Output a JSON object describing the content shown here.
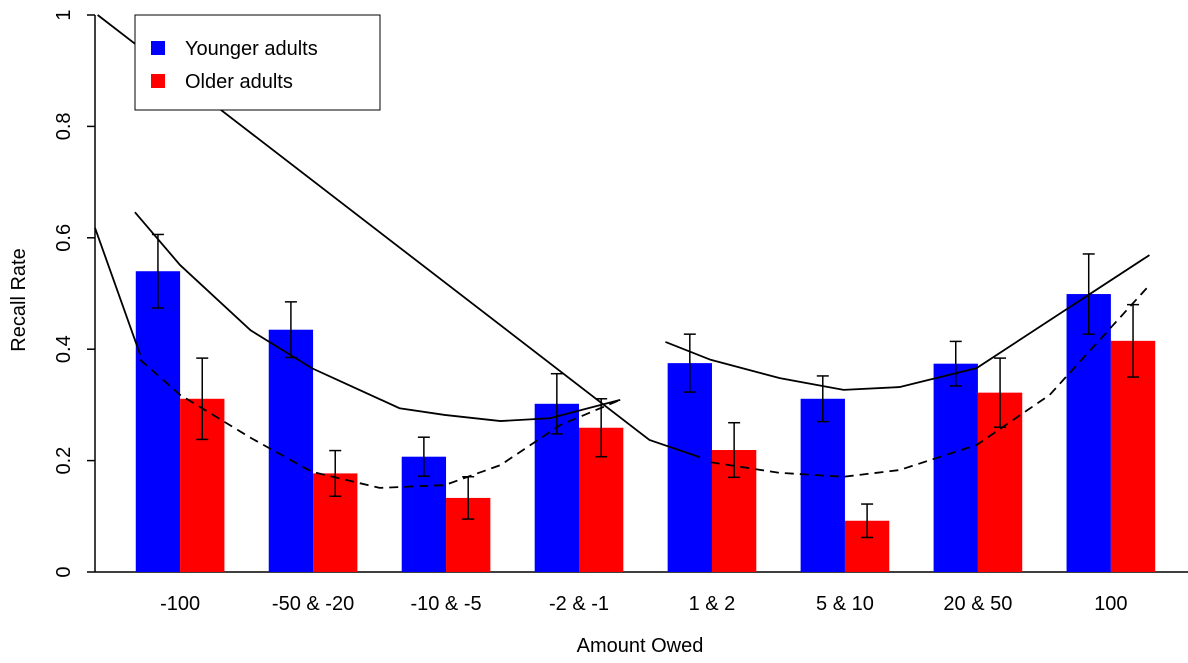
{
  "chart_data": {
    "type": "bar",
    "x_label": "Amount Owed",
    "y_label": "Recall Rate",
    "categories": [
      "-100",
      "-50 & -20",
      "-10 & -5",
      "-2 & -1",
      "1 & 2",
      "5 & 10",
      "20 & 50",
      "100"
    ],
    "series": [
      {
        "name": "Younger adults",
        "color": "#0000ff",
        "values": [
          0.54,
          0.435,
          0.207,
          0.302,
          0.375,
          0.311,
          0.374,
          0.499
        ],
        "errors": [
          0.066,
          0.05,
          0.035,
          0.054,
          0.052,
          0.041,
          0.04,
          0.072
        ]
      },
      {
        "name": "Older adults",
        "color": "#ff0000",
        "values": [
          0.311,
          0.177,
          0.133,
          0.259,
          0.219,
          0.092,
          0.322,
          0.415
        ],
        "errors": [
          0.073,
          0.041,
          0.038,
          0.052,
          0.049,
          0.03,
          0.062,
          0.065
        ]
      }
    ],
    "lines": [
      {
        "dashed": false,
        "x": [
          -0.34,
          0,
          0.53,
          0.99,
          1.65,
          1.99,
          2.41,
          2.78,
          3.31
        ],
        "values": [
          0.646,
          0.551,
          0.434,
          0.366,
          0.294,
          0.282,
          0.271,
          0.276,
          0.309
        ]
      },
      {
        "dashed": true,
        "x": [
          -0.3,
          0,
          0.53,
          0.99,
          1.5,
          1.99,
          2.41,
          2.86,
          3.31
        ],
        "values": [
          0.381,
          0.318,
          0.241,
          0.18,
          0.151,
          0.156,
          0.192,
          0.264,
          0.309
        ]
      },
      {
        "dashed": false,
        "x": [
          3.65,
          3.99,
          4.51,
          4.99,
          5.41,
          5.99,
          6.54,
          7.29
        ],
        "values": [
          0.413,
          0.381,
          0.348,
          0.327,
          0.332,
          0.366,
          0.452,
          0.569
        ]
      },
      {
        "dashed": true,
        "x": [
          3.99,
          4.51,
          4.99,
          5.41,
          5.99,
          6.54,
          7.29
        ],
        "values": [
          0.197,
          0.178,
          0.171,
          0.183,
          0.228,
          0.318,
          0.515
        ]
      },
      {
        "dashed": false,
        "x": [
          -0.62,
          3.53,
          3.91
        ],
        "values": [
          1.0,
          0.237,
          0.206
        ]
      },
      {
        "dashed": false,
        "x": [
          -0.64,
          -0.3
        ],
        "values": [
          0.618,
          0.39
        ]
      }
    ],
    "xlim": [
      -0.64,
      7.58
    ],
    "ylim": [
      0,
      1
    ],
    "yticks": [
      0,
      0.2,
      0.4,
      0.6,
      0.8,
      1
    ],
    "legend": "top-left"
  }
}
